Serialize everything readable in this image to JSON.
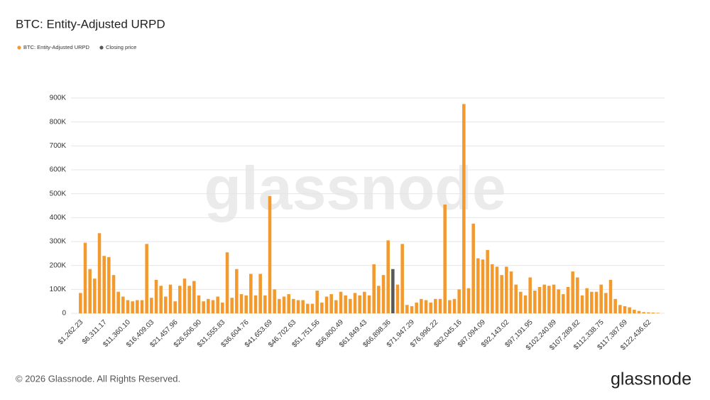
{
  "chart_data": {
    "type": "bar",
    "title": "BTC: Entity-Adjusted URPD",
    "watermark": "glassnode",
    "footer": "© 2026 Glassnode. All Rights Reserved.",
    "logo": "glassnode",
    "categories": [
      "$1,262.23",
      null,
      null,
      null,
      null,
      "$6,311.17",
      null,
      null,
      null,
      null,
      "$11,360.10",
      null,
      null,
      null,
      null,
      "$16,409.03",
      null,
      null,
      null,
      null,
      "$21,457.96",
      null,
      null,
      null,
      null,
      "$26,506.90",
      null,
      null,
      null,
      null,
      "$31,555.83",
      null,
      null,
      null,
      null,
      "$36,604.76",
      null,
      null,
      null,
      null,
      "$41,653.69",
      null,
      null,
      null,
      null,
      "$46,702.63",
      null,
      null,
      null,
      null,
      "$51,751.56",
      null,
      null,
      null,
      null,
      "$56,800.49",
      null,
      null,
      null,
      null,
      "$61,849.43",
      null,
      null,
      null,
      null,
      "$66,898.36",
      null,
      null,
      null,
      null,
      "$71,947.29",
      null,
      null,
      null,
      null,
      "$76,996.22",
      null,
      null,
      null,
      null,
      "$82,045.16",
      null,
      null,
      null,
      null,
      "$87,094.09",
      null,
      null,
      null,
      null,
      "$92,143.02",
      null,
      null,
      null,
      null,
      "$97,191.95",
      null,
      null,
      null,
      null,
      "$102,240.89",
      null,
      null,
      null,
      null,
      "$107,289.82",
      null,
      null,
      null,
      null,
      "$112,338.75",
      null,
      null,
      null,
      null,
      "$117,387.69",
      null,
      null,
      null,
      null,
      "$122,436.62",
      null,
      null
    ],
    "series": [
      {
        "name": "BTC: Entity-Adjusted URPD",
        "color": "#f29a2e",
        "values": [
          85000,
          295000,
          185000,
          145000,
          335000,
          240000,
          235000,
          160000,
          90000,
          70000,
          55000,
          50000,
          55000,
          55000,
          290000,
          65000,
          140000,
          115000,
          70000,
          120000,
          50000,
          115000,
          145000,
          115000,
          135000,
          75000,
          50000,
          60000,
          55000,
          70000,
          45000,
          255000,
          65000,
          185000,
          80000,
          75000,
          165000,
          75000,
          165000,
          75000,
          490000,
          100000,
          60000,
          70000,
          80000,
          60000,
          55000,
          55000,
          40000,
          40000,
          95000,
          45000,
          70000,
          80000,
          55000,
          90000,
          75000,
          60000,
          85000,
          75000,
          90000,
          75000,
          205000,
          115000,
          160000,
          305000,
          null,
          120000,
          290000,
          35000,
          30000,
          45000,
          60000,
          55000,
          45000,
          60000,
          60000,
          455000,
          55000,
          60000,
          100000,
          875000,
          105000,
          375000,
          230000,
          225000,
          265000,
          205000,
          195000,
          160000,
          195000,
          175000,
          120000,
          90000,
          75000,
          150000,
          95000,
          110000,
          120000,
          115000,
          120000,
          100000,
          80000,
          110000,
          175000,
          150000,
          75000,
          105000,
          90000,
          90000,
          120000,
          85000,
          140000,
          60000,
          35000,
          30000,
          25000,
          15000,
          10000,
          5000,
          4000,
          3000,
          2000
        ]
      },
      {
        "name": "Closing price",
        "color": "#595959",
        "values": [
          null,
          null,
          null,
          null,
          null,
          null,
          null,
          null,
          null,
          null,
          null,
          null,
          null,
          null,
          null,
          null,
          null,
          null,
          null,
          null,
          null,
          null,
          null,
          null,
          null,
          null,
          null,
          null,
          null,
          null,
          null,
          null,
          null,
          null,
          null,
          null,
          null,
          null,
          null,
          null,
          null,
          null,
          null,
          null,
          null,
          null,
          null,
          null,
          null,
          null,
          null,
          null,
          null,
          null,
          null,
          null,
          null,
          null,
          null,
          null,
          null,
          null,
          null,
          null,
          null,
          null,
          185000,
          null,
          null,
          null,
          null,
          null,
          null,
          null,
          null,
          null,
          null,
          null,
          null,
          null,
          null,
          null,
          null,
          null,
          null,
          null,
          null,
          null,
          null,
          null,
          null,
          null,
          null,
          null,
          null,
          null,
          null,
          null,
          null,
          null,
          null,
          null,
          null,
          null,
          null,
          null,
          null,
          null,
          null,
          null,
          null,
          null,
          null,
          null,
          null,
          null,
          null,
          null,
          null,
          null,
          null,
          null,
          null
        ]
      }
    ],
    "ylim": [
      0,
      900000
    ],
    "yticks": [
      0,
      {
        "value": 100000,
        "label": "100K"
      },
      {
        "value": 200000,
        "label": "200K"
      },
      {
        "value": 300000,
        "label": "300K"
      },
      {
        "value": 400000,
        "label": "400K"
      },
      {
        "value": 500000,
        "label": "500K"
      },
      {
        "value": 600000,
        "label": "600K"
      },
      {
        "value": 700000,
        "label": "700K"
      },
      {
        "value": 800000,
        "label": "800K"
      },
      {
        "value": 900000,
        "label": "900K"
      }
    ],
    "grid": true
  }
}
